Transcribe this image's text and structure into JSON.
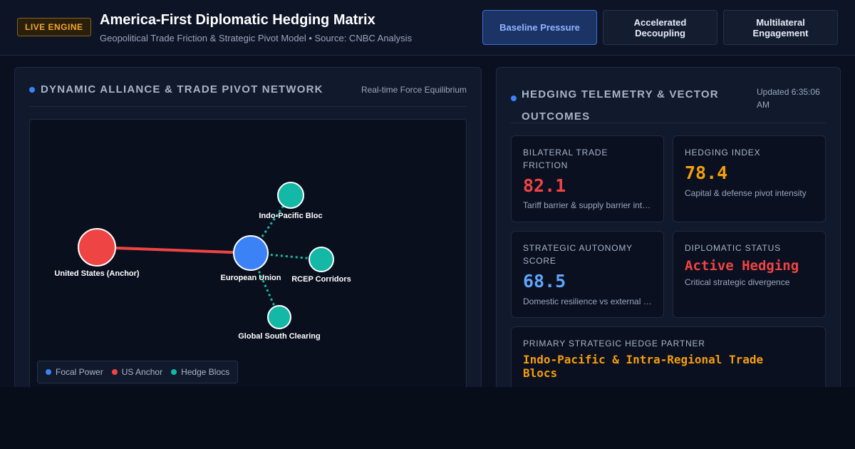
{
  "header": {
    "badge": "LIVE ENGINE",
    "title": "America-First Diplomatic Hedging Matrix",
    "subtitle": "Geopolitical Trade Friction & Strategic Pivot Model • Source: CNBC Analysis",
    "scenarios": [
      {
        "label_line1": "Baseline Pressure",
        "label_line2": "",
        "active": true
      },
      {
        "label_line1": "Accelerated",
        "label_line2": "Decoupling",
        "active": false
      },
      {
        "label_line1": "Multilateral",
        "label_line2": "Engagement",
        "active": false
      }
    ]
  },
  "network_panel": {
    "title": "DYNAMIC ALLIANCE & TRADE PIVOT NETWORK",
    "meta": "Real-time Force Equilibrium",
    "nodes": [
      {
        "label": "United States (Anchor)",
        "type": "anchor"
      },
      {
        "label": "European Union",
        "type": "focal"
      },
      {
        "label": "Indo-Pacific Bloc",
        "type": "hedge"
      },
      {
        "label": "RCEP Corridors",
        "type": "hedge"
      },
      {
        "label": "Global South Clearing",
        "type": "hedge"
      }
    ],
    "legend": [
      {
        "label": "Focal Power",
        "color": "#3b82f6"
      },
      {
        "label": "US Anchor",
        "color": "#ef4444"
      },
      {
        "label": "Hedge Blocs",
        "color": "#14b8a6"
      }
    ]
  },
  "telemetry_panel": {
    "title_line1": "HEDGING TELEMETRY & VECTOR",
    "title_line2": "OUTCOMES",
    "updated_line1": "Updated 6:35:06",
    "updated_line2": "AM",
    "cards": {
      "friction": {
        "label_line1": "BILATERAL TRADE",
        "label_line2": "FRICTION",
        "value": "82.1",
        "desc": "Tariff barrier & supply barrier intensity",
        "color": "#ef4444"
      },
      "hedging": {
        "label_line1": "HEDGING INDEX",
        "value": "78.4",
        "desc": "Capital & defense pivot intensity",
        "color": "#f59e0b"
      },
      "autonomy": {
        "label_line1": "STRATEGIC AUTONOMY",
        "label_line2": "SCORE",
        "value": "68.5",
        "desc": "Domestic resilience vs external reliance",
        "color": "#60a5fa"
      },
      "status": {
        "label_line1": "DIPLOMATIC STATUS",
        "value": "Active Hedging",
        "desc": "Critical strategic divergence",
        "color": "#ef4444"
      }
    },
    "partner": {
      "label": "PRIMARY STRATEGIC HEDGE PARTNER",
      "name_line1": "Indo-Pacific & Intra-Regional Trade",
      "name_line2": "Blocs",
      "color": "#f59e0b"
    }
  }
}
